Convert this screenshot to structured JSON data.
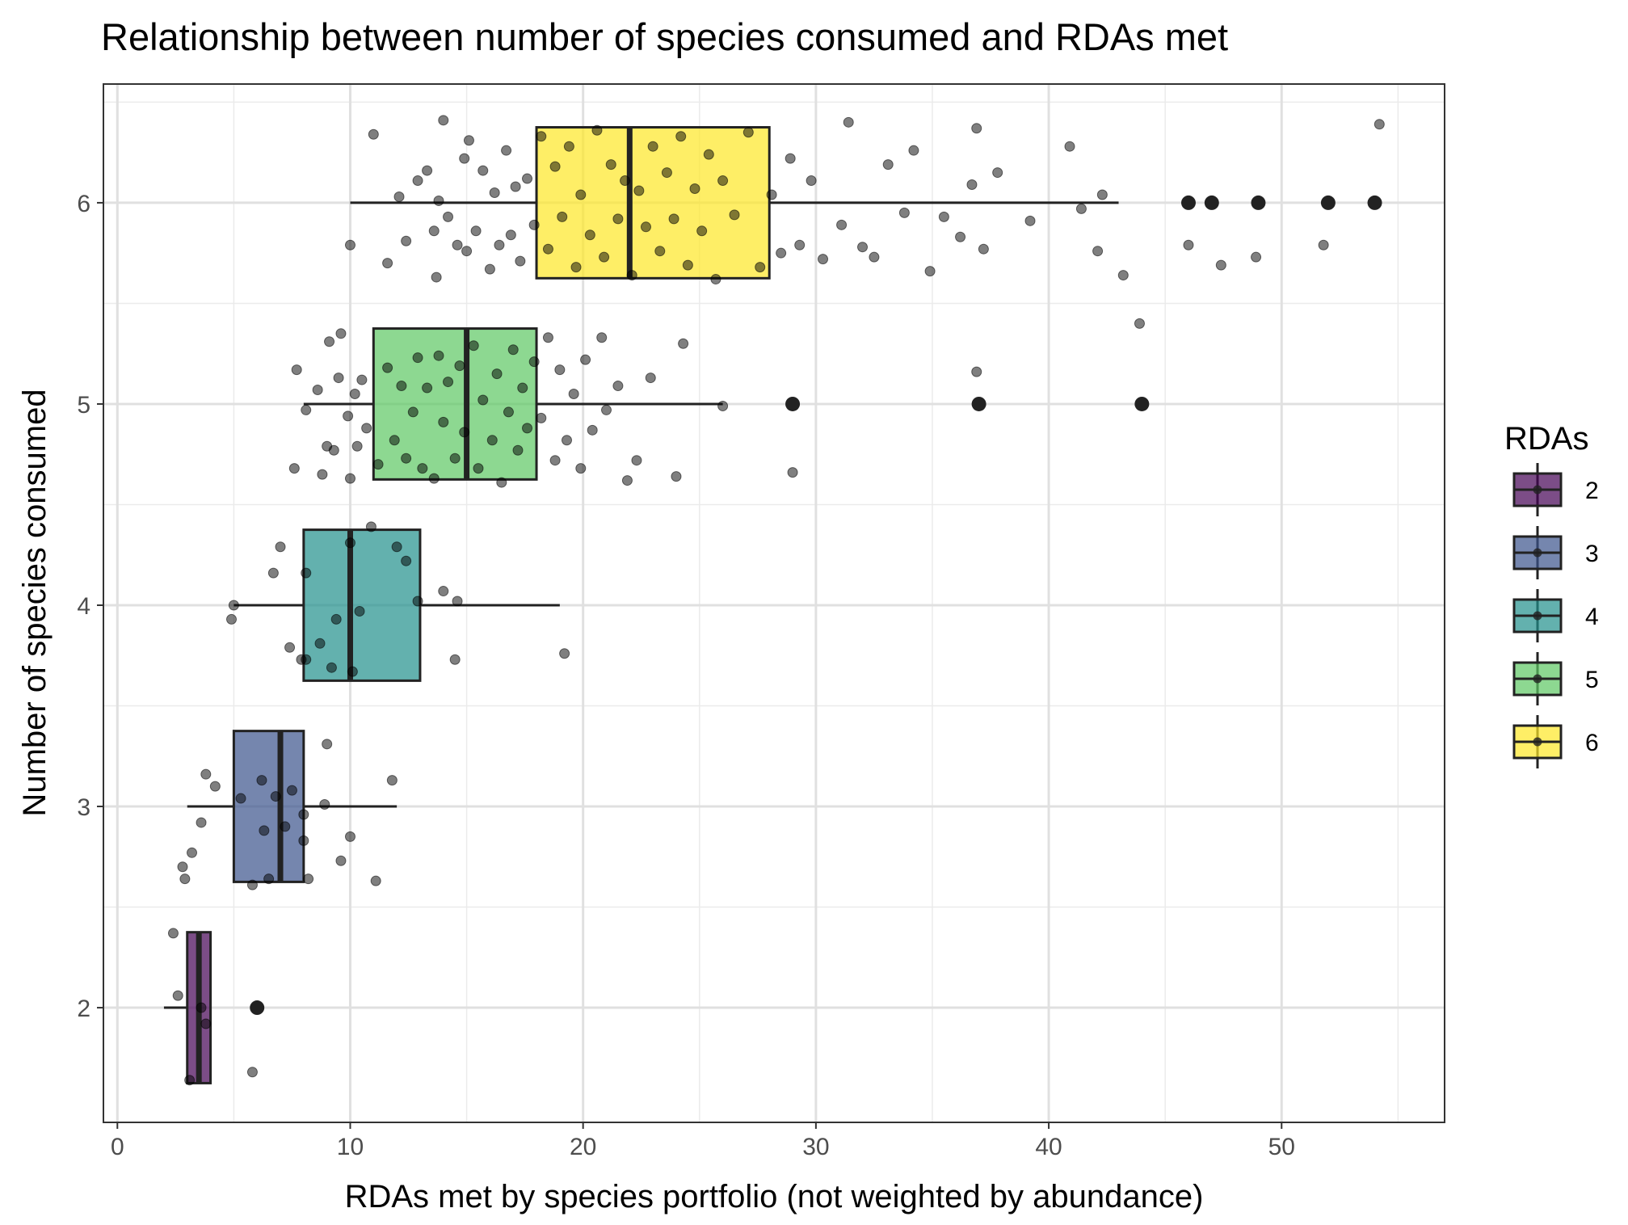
{
  "chart_data": {
    "type": "boxplot",
    "title": "Relationship between number of species consumed and RDAs met",
    "xlabel": "RDAs met by species portfolio (not weighted by abundance)",
    "ylabel": "Number of species consumed",
    "xlim": [
      -0.6,
      57.0
    ],
    "ylim": [
      1.43,
      6.59
    ],
    "x_ticks": [
      0,
      10,
      20,
      30,
      40,
      50
    ],
    "y_ticks": [
      2,
      3,
      4,
      5,
      6
    ],
    "grid": true,
    "orientation": "horizontal",
    "legend": {
      "title": "RDAs",
      "position": "right",
      "entries": [
        {
          "label": "2",
          "color": "#440154"
        },
        {
          "label": "3",
          "color": "#3B528B"
        },
        {
          "label": "4",
          "color": "#21908C"
        },
        {
          "label": "5",
          "color": "#5DC863"
        },
        {
          "label": "6",
          "color": "#FDE725"
        }
      ]
    },
    "series": [
      {
        "group": "2",
        "y": 2,
        "color": "#440154",
        "whisker_low": 2.0,
        "q1": 3.0,
        "median": 3.5,
        "q3": 4.0,
        "whisker_high": 4.0,
        "outliers": [
          6
        ],
        "jitter_points": [
          [
            2.4,
            2.37
          ],
          [
            2.6,
            2.06
          ],
          [
            3.1,
            1.64
          ],
          [
            3.6,
            2.0
          ],
          [
            3.8,
            1.92
          ],
          [
            5.8,
            1.68
          ]
        ]
      },
      {
        "group": "3",
        "y": 3,
        "color": "#3B528B",
        "whisker_low": 3.0,
        "q1": 5.0,
        "median": 7.0,
        "q3": 8.0,
        "whisker_high": 12.0,
        "outliers": [],
        "jitter_points": [
          [
            2.8,
            2.7
          ],
          [
            2.9,
            2.64
          ],
          [
            3.2,
            2.77
          ],
          [
            3.6,
            2.92
          ],
          [
            3.8,
            3.16
          ],
          [
            4.2,
            3.1
          ],
          [
            5.3,
            3.04
          ],
          [
            5.8,
            2.61
          ],
          [
            6.2,
            3.13
          ],
          [
            6.3,
            2.88
          ],
          [
            6.5,
            2.64
          ],
          [
            6.8,
            3.05
          ],
          [
            7.2,
            2.9
          ],
          [
            7.5,
            3.08
          ],
          [
            8.0,
            2.96
          ],
          [
            8.0,
            2.83
          ],
          [
            8.2,
            2.64
          ],
          [
            9.0,
            3.31
          ],
          [
            8.9,
            3.01
          ],
          [
            9.6,
            2.73
          ],
          [
            10.0,
            2.85
          ],
          [
            11.1,
            2.63
          ],
          [
            11.8,
            3.13
          ]
        ]
      },
      {
        "group": "4",
        "y": 4,
        "color": "#21908C",
        "whisker_low": 5.0,
        "q1": 8.0,
        "median": 10.0,
        "q3": 13.0,
        "whisker_high": 19.0,
        "outliers": [],
        "jitter_points": [
          [
            4.9,
            3.93
          ],
          [
            5.0,
            4.0
          ],
          [
            6.7,
            4.16
          ],
          [
            7.0,
            4.29
          ],
          [
            7.4,
            3.79
          ],
          [
            7.9,
            3.73
          ],
          [
            8.1,
            3.73
          ],
          [
            8.1,
            4.16
          ],
          [
            8.7,
            3.81
          ],
          [
            9.2,
            3.69
          ],
          [
            9.4,
            3.93
          ],
          [
            10.0,
            4.31
          ],
          [
            10.1,
            3.67
          ],
          [
            10.4,
            3.97
          ],
          [
            10.9,
            4.39
          ],
          [
            12.0,
            4.29
          ],
          [
            12.4,
            4.22
          ],
          [
            12.9,
            4.02
          ],
          [
            14.0,
            4.07
          ],
          [
            14.5,
            3.73
          ],
          [
            14.6,
            4.02
          ],
          [
            19.2,
            3.76
          ]
        ]
      },
      {
        "group": "5",
        "y": 5,
        "color": "#5DC863",
        "whisker_low": 8.0,
        "q1": 11.0,
        "median": 15.0,
        "q3": 18.0,
        "whisker_high": 26.0,
        "outliers": [
          29,
          37,
          44
        ],
        "jitter_points": [
          [
            7.6,
            4.68
          ],
          [
            7.7,
            5.17
          ],
          [
            8.1,
            4.97
          ],
          [
            8.6,
            5.07
          ],
          [
            8.8,
            4.65
          ],
          [
            9.0,
            4.79
          ],
          [
            9.1,
            5.31
          ],
          [
            9.3,
            4.77
          ],
          [
            9.5,
            5.13
          ],
          [
            9.6,
            5.35
          ],
          [
            9.9,
            4.94
          ],
          [
            10.0,
            4.63
          ],
          [
            10.2,
            5.05
          ],
          [
            10.3,
            4.79
          ],
          [
            10.5,
            5.12
          ],
          [
            10.7,
            4.88
          ],
          [
            11.2,
            4.7
          ],
          [
            11.6,
            5.18
          ],
          [
            11.9,
            4.82
          ],
          [
            12.2,
            5.09
          ],
          [
            12.4,
            4.73
          ],
          [
            12.7,
            4.96
          ],
          [
            12.9,
            5.23
          ],
          [
            13.1,
            4.68
          ],
          [
            13.3,
            5.08
          ],
          [
            13.6,
            4.63
          ],
          [
            13.8,
            5.24
          ],
          [
            14.0,
            4.91
          ],
          [
            14.2,
            5.11
          ],
          [
            14.5,
            4.73
          ],
          [
            14.7,
            5.19
          ],
          [
            14.9,
            4.86
          ],
          [
            15.3,
            5.29
          ],
          [
            15.5,
            4.68
          ],
          [
            15.7,
            5.02
          ],
          [
            16.1,
            4.82
          ],
          [
            16.3,
            5.15
          ],
          [
            16.5,
            4.61
          ],
          [
            16.8,
            4.96
          ],
          [
            17.0,
            5.27
          ],
          [
            17.2,
            4.77
          ],
          [
            17.4,
            5.08
          ],
          [
            17.6,
            4.88
          ],
          [
            17.9,
            5.21
          ],
          [
            18.2,
            4.93
          ],
          [
            18.5,
            5.33
          ],
          [
            18.8,
            4.72
          ],
          [
            19.0,
            5.17
          ],
          [
            19.3,
            4.82
          ],
          [
            19.6,
            5.05
          ],
          [
            19.9,
            4.68
          ],
          [
            20.1,
            5.22
          ],
          [
            20.4,
            4.87
          ],
          [
            20.8,
            5.33
          ],
          [
            21.0,
            4.97
          ],
          [
            21.5,
            5.09
          ],
          [
            21.9,
            4.62
          ],
          [
            22.3,
            4.72
          ],
          [
            22.9,
            5.13
          ],
          [
            24.0,
            4.64
          ],
          [
            24.3,
            5.3
          ],
          [
            26.0,
            4.99
          ],
          [
            29.0,
            4.66
          ],
          [
            36.9,
            5.16
          ],
          [
            43.9,
            5.4
          ]
        ]
      },
      {
        "group": "6",
        "y": 6,
        "color": "#FDE725",
        "whisker_low": 10.0,
        "q1": 18.0,
        "median": 22.0,
        "q3": 28.0,
        "whisker_high": 43.0,
        "outliers": [
          46,
          47,
          49,
          52,
          54
        ],
        "jitter_points": [
          [
            10.0,
            5.79
          ],
          [
            11.0,
            6.34
          ],
          [
            11.6,
            5.7
          ],
          [
            12.1,
            6.03
          ],
          [
            12.4,
            5.81
          ],
          [
            12.9,
            6.11
          ],
          [
            13.3,
            6.16
          ],
          [
            13.6,
            5.86
          ],
          [
            13.7,
            5.63
          ],
          [
            13.8,
            6.01
          ],
          [
            14.0,
            6.41
          ],
          [
            14.2,
            5.93
          ],
          [
            14.6,
            5.79
          ],
          [
            14.9,
            6.22
          ],
          [
            15.0,
            5.76
          ],
          [
            15.1,
            6.31
          ],
          [
            15.4,
            5.86
          ],
          [
            15.7,
            6.16
          ],
          [
            16.0,
            5.67
          ],
          [
            16.2,
            6.05
          ],
          [
            16.4,
            5.79
          ],
          [
            16.7,
            6.26
          ],
          [
            16.9,
            5.84
          ],
          [
            17.1,
            6.08
          ],
          [
            17.3,
            5.71
          ],
          [
            17.6,
            6.12
          ],
          [
            17.9,
            5.89
          ],
          [
            18.2,
            6.33
          ],
          [
            18.5,
            5.77
          ],
          [
            18.8,
            6.18
          ],
          [
            19.1,
            5.93
          ],
          [
            19.4,
            6.28
          ],
          [
            19.7,
            5.68
          ],
          [
            19.9,
            6.04
          ],
          [
            20.3,
            5.84
          ],
          [
            20.6,
            6.36
          ],
          [
            20.9,
            5.73
          ],
          [
            21.2,
            6.19
          ],
          [
            21.5,
            5.92
          ],
          [
            21.8,
            6.11
          ],
          [
            22.1,
            5.64
          ],
          [
            22.4,
            6.06
          ],
          [
            22.7,
            5.88
          ],
          [
            23.0,
            6.28
          ],
          [
            23.3,
            5.76
          ],
          [
            23.6,
            6.15
          ],
          [
            23.9,
            5.92
          ],
          [
            24.2,
            6.33
          ],
          [
            24.5,
            5.69
          ],
          [
            24.8,
            6.07
          ],
          [
            25.1,
            5.86
          ],
          [
            25.4,
            6.24
          ],
          [
            25.7,
            5.62
          ],
          [
            26.0,
            6.11
          ],
          [
            26.5,
            5.94
          ],
          [
            27.1,
            6.35
          ],
          [
            27.6,
            5.68
          ],
          [
            28.1,
            6.04
          ],
          [
            28.5,
            5.75
          ],
          [
            28.9,
            6.22
          ],
          [
            29.3,
            5.79
          ],
          [
            29.8,
            6.11
          ],
          [
            30.3,
            5.72
          ],
          [
            31.1,
            5.89
          ],
          [
            31.4,
            6.4
          ],
          [
            32.0,
            5.78
          ],
          [
            32.5,
            5.73
          ],
          [
            33.1,
            6.19
          ],
          [
            33.8,
            5.95
          ],
          [
            34.2,
            6.26
          ],
          [
            34.9,
            5.66
          ],
          [
            35.5,
            5.93
          ],
          [
            36.2,
            5.83
          ],
          [
            36.7,
            6.09
          ],
          [
            36.9,
            6.37
          ],
          [
            37.2,
            5.77
          ],
          [
            37.8,
            6.15
          ],
          [
            39.2,
            5.91
          ],
          [
            40.9,
            6.28
          ],
          [
            41.4,
            5.97
          ],
          [
            42.1,
            5.76
          ],
          [
            42.3,
            6.04
          ],
          [
            43.2,
            5.64
          ],
          [
            46.0,
            5.79
          ],
          [
            47.4,
            5.69
          ],
          [
            48.9,
            5.73
          ],
          [
            51.8,
            5.79
          ],
          [
            54.2,
            6.39
          ]
        ]
      }
    ]
  }
}
